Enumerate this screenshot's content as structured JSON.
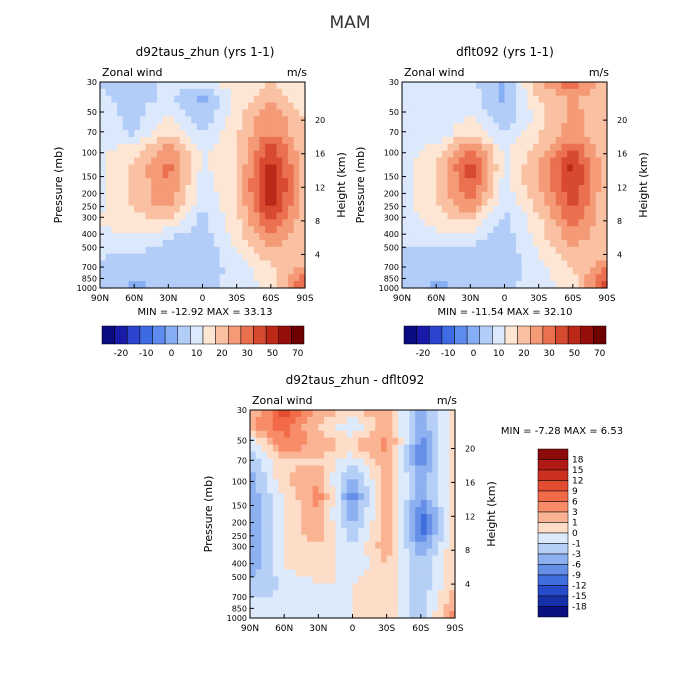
{
  "figure": {
    "title": "MAM"
  },
  "chart_data": [
    {
      "type": "heatmap",
      "title": "d92taus_zhun (yrs 1-1)",
      "left_label": "Zonal wind",
      "right_label": "m/s",
      "xlabel": "",
      "ylabel": "Pressure (mb)",
      "ylabel_right": "Height (km)",
      "x_ticks": [
        "90N",
        "60N",
        "30N",
        "0",
        "30S",
        "60S",
        "90S"
      ],
      "y_ticks": [
        "30",
        "50",
        "70",
        "100",
        "150",
        "200",
        "250",
        "300",
        "400",
        "500",
        "700",
        "850",
        "1000"
      ],
      "height_ticks": [
        "4",
        "8",
        "12",
        "16",
        "20"
      ],
      "ylim": [
        1000,
        30
      ],
      "stats": "MIN = -12.92   MAX =  33.13",
      "colorbar": {
        "orientation": "horizontal",
        "labels": [
          "-20",
          "-10",
          "0",
          "10",
          "20",
          "30",
          "50",
          "70"
        ],
        "colors": [
          "#0a0a82",
          "#1a1aa8",
          "#2c44d0",
          "#3e6ae2",
          "#5e8cee",
          "#86aef4",
          "#b2cdf8",
          "#dce8fc",
          "#fde6d4",
          "#f9c0a2",
          "#f49a76",
          "#ea7050",
          "#d84a30",
          "#bc2818",
          "#960e0a",
          "#6e0000"
        ]
      },
      "series": [
        {
          "values": [
            [
              -5,
              -8,
              -3,
              -2,
              3,
              4,
              2
            ],
            [
              -3,
              -7,
              -3,
              -10,
              1,
              8,
              0
            ],
            [
              -2,
              -6,
              1,
              -8,
              3,
              14,
              4
            ],
            [
              -2,
              -5,
              5,
              -4,
              4,
              14,
              5
            ],
            [
              -1,
              3,
              12,
              -1,
              3,
              21,
              5
            ],
            [
              -1,
              5,
              15,
              -1,
              4,
              26,
              6
            ],
            [
              -1,
              5,
              14,
              -2,
              4,
              27,
              6
            ],
            [
              -1,
              5,
              12,
              -4,
              4,
              26,
              6
            ],
            [
              0,
              3,
              5,
              -6,
              3,
              19,
              6
            ],
            [
              -1,
              0,
              -4,
              -7,
              2,
              13,
              5
            ],
            [
              -4,
              -5,
              -6,
              -8,
              -1,
              8,
              4
            ],
            [
              -5,
              -8,
              -7,
              -7,
              -3,
              3,
              12
            ],
            [
              -5,
              -10,
              -8,
              -6,
              -2,
              1,
              20
            ]
          ]
        }
      ]
    },
    {
      "type": "heatmap",
      "title": "dflt092 (yrs 1-1)",
      "left_label": "Zonal wind",
      "right_label": "m/s",
      "xlabel": "",
      "ylabel": "Pressure (mb)",
      "ylabel_right": "Height (km)",
      "x_ticks": [
        "90N",
        "60N",
        "30N",
        "0",
        "30S",
        "60S",
        "90S"
      ],
      "y_ticks": [
        "30",
        "50",
        "70",
        "100",
        "150",
        "200",
        "250",
        "300",
        "400",
        "500",
        "700",
        "850",
        "1000"
      ],
      "height_ticks": [
        "4",
        "8",
        "12",
        "16",
        "20"
      ],
      "ylim": [
        1000,
        30
      ],
      "stats": "MIN = -11.54   MAX =  32.10",
      "colorbar": {
        "orientation": "horizontal",
        "labels": [
          "-20",
          "-10",
          "0",
          "10",
          "20",
          "30",
          "50",
          "70"
        ],
        "colors": [
          "#0a0a82",
          "#1a1aa8",
          "#2c44d0",
          "#3e6ae2",
          "#5e8cee",
          "#86aef4",
          "#b2cdf8",
          "#dce8fc",
          "#fde6d4",
          "#f9c0a2",
          "#f49a76",
          "#ea7050",
          "#d84a30",
          "#bc2818",
          "#960e0a",
          "#6e0000"
        ]
      },
      "series": [
        {
          "values": [
            [
              -2,
              -2,
              -3,
              -10,
              9,
              17,
              6
            ],
            [
              0,
              -2,
              -2,
              -10,
              4,
              10,
              4
            ],
            [
              -2,
              -4,
              0,
              -9,
              2,
              11,
              4
            ],
            [
              -2,
              -4,
              5,
              -5,
              4,
              11,
              5
            ],
            [
              -2,
              2,
              16,
              -1,
              7,
              18,
              5
            ],
            [
              -2,
              4,
              21,
              -1,
              9,
              24,
              5
            ],
            [
              -2,
              5,
              18,
              -2,
              9,
              22,
              5
            ],
            [
              -2,
              5,
              14,
              -4,
              7,
              20,
              5
            ],
            [
              -2,
              2,
              6,
              -6,
              3,
              16,
              5
            ],
            [
              -3,
              -1,
              -2,
              -7,
              2,
              12,
              5
            ],
            [
              -5,
              -6,
              -6,
              -8,
              0,
              7,
              5
            ],
            [
              -5,
              -8,
              -7,
              -7,
              -2,
              4,
              15
            ],
            [
              -5,
              -10,
              -8,
              -6,
              -2,
              1,
              22
            ]
          ]
        }
      ]
    },
    {
      "type": "heatmap",
      "title": "d92taus_zhun - dflt092",
      "left_label": "Zonal wind",
      "right_label": "m/s",
      "xlabel": "",
      "ylabel": "Pressure (mb)",
      "ylabel_right": "Height (km)",
      "x_ticks": [
        "90N",
        "60N",
        "30N",
        "0",
        "30S",
        "60S",
        "90S"
      ],
      "y_ticks": [
        "30",
        "50",
        "70",
        "100",
        "150",
        "200",
        "250",
        "300",
        "400",
        "500",
        "700",
        "850",
        "1000"
      ],
      "height_ticks": [
        "4",
        "8",
        "12",
        "16",
        "20"
      ],
      "ylim": [
        1000,
        30
      ],
      "stats": "MIN =  -7.28   MAX =   6.53",
      "colorbar": {
        "orientation": "vertical",
        "labels": [
          "18",
          "15",
          "12",
          "9",
          "6",
          "3",
          "1",
          "0",
          "-1",
          "-3",
          "-6",
          "-9",
          "-12",
          "-15",
          "-18"
        ],
        "colors": [
          "#8c0a0a",
          "#b01a14",
          "#cc3020",
          "#e24c30",
          "#f26a48",
          "#f88c68",
          "#fab494",
          "#fddcc8",
          "#dceafc",
          "#b6cff6",
          "#8cb0f0",
          "#6690e8",
          "#406ede",
          "#264ccc",
          "#1630aa",
          "#0a1080"
        ]
      },
      "series": [
        {
          "values": [
            [
              -1,
              -5,
              -2,
              -1,
              -2,
              3,
              -1
            ],
            [
              -2,
              -4,
              -1,
              1,
              -2,
              3,
              -1
            ],
            [
              1,
              -3,
              -2,
              -1,
              -3,
              4,
              -1
            ],
            [
              2,
              -1,
              -1,
              1,
              -2,
              4,
              -1
            ],
            [
              3,
              -1,
              -2,
              3,
              -2,
              3,
              -1
            ],
            [
              3,
              0,
              -3,
              4,
              -2,
              3,
              -1
            ],
            [
              3,
              0,
              -2,
              3,
              -2,
              5,
              -1
            ],
            [
              3,
              0,
              -2,
              2,
              -2,
              5,
              -1
            ],
            [
              3,
              0,
              -1,
              1,
              -2,
              3,
              -1
            ],
            [
              3,
              0,
              -1,
              1,
              -1,
              2,
              -1
            ],
            [
              2,
              1,
              0,
              0,
              -1,
              2,
              -1
            ],
            [
              1,
              1,
              0,
              0,
              -1,
              2,
              -2
            ],
            [
              1,
              1,
              0,
              0,
              -1,
              2,
              -3
            ]
          ]
        }
      ]
    }
  ]
}
